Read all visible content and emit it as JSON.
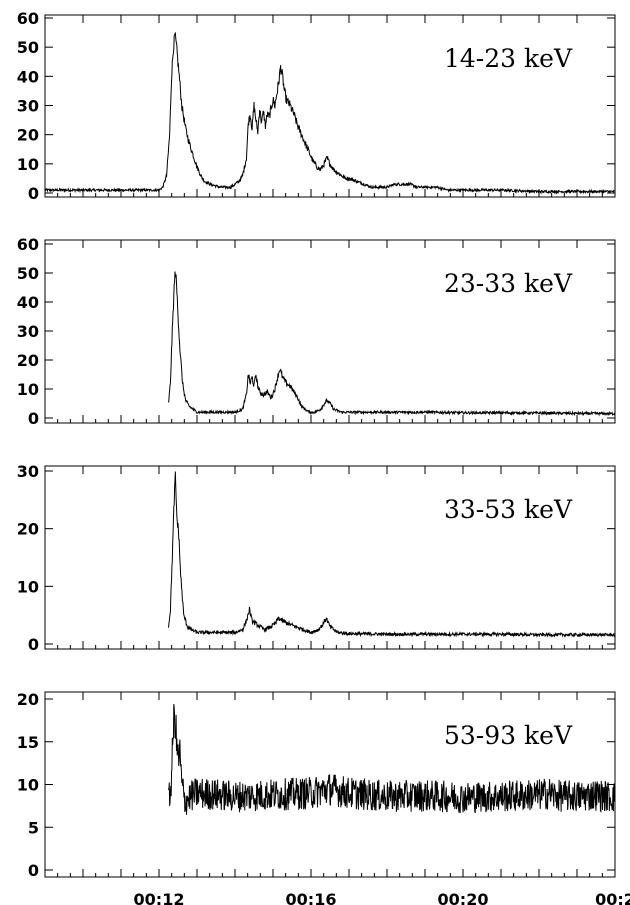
{
  "chart_data": [
    {
      "type": "line",
      "annotation": "14-23 keV",
      "ylim": [
        0,
        60
      ],
      "yticks": [
        0,
        10,
        20,
        30,
        40,
        50,
        60
      ],
      "xlim": [
        9,
        24
      ],
      "xtick_labels": [],
      "grid": false,
      "series": [
        {
          "points": [
            [
              9.0,
              1
            ],
            [
              12.0,
              1
            ],
            [
              12.1,
              2
            ],
            [
              12.2,
              6
            ],
            [
              12.28,
              20
            ],
            [
              12.33,
              40
            ],
            [
              12.38,
              50
            ],
            [
              12.42,
              54
            ],
            [
              12.46,
              50
            ],
            [
              12.52,
              42
            ],
            [
              12.6,
              30
            ],
            [
              12.7,
              22
            ],
            [
              12.8,
              17
            ],
            [
              12.9,
              13
            ],
            [
              13.0,
              9
            ],
            [
              13.1,
              6
            ],
            [
              13.2,
              4
            ],
            [
              13.35,
              3
            ],
            [
              13.6,
              2
            ],
            [
              13.9,
              2
            ],
            [
              14.0,
              3
            ],
            [
              14.1,
              4
            ],
            [
              14.2,
              6
            ],
            [
              14.3,
              12
            ],
            [
              14.35,
              24
            ],
            [
              14.4,
              27
            ],
            [
              14.45,
              22
            ],
            [
              14.5,
              30
            ],
            [
              14.55,
              25
            ],
            [
              14.6,
              21
            ],
            [
              14.65,
              29
            ],
            [
              14.7,
              24
            ],
            [
              14.75,
              28
            ],
            [
              14.8,
              23
            ],
            [
              14.85,
              27
            ],
            [
              14.9,
              26
            ],
            [
              14.95,
              29
            ],
            [
              15.0,
              32
            ],
            [
              15.05,
              30
            ],
            [
              15.1,
              34
            ],
            [
              15.15,
              38
            ],
            [
              15.2,
              43
            ],
            [
              15.25,
              40
            ],
            [
              15.3,
              35
            ],
            [
              15.35,
              32
            ],
            [
              15.45,
              30
            ],
            [
              15.55,
              27
            ],
            [
              15.65,
              23
            ],
            [
              15.75,
              20
            ],
            [
              15.85,
              17
            ],
            [
              15.95,
              14
            ],
            [
              16.05,
              11
            ],
            [
              16.15,
              9
            ],
            [
              16.25,
              8
            ],
            [
              16.35,
              10
            ],
            [
              16.42,
              12
            ],
            [
              16.5,
              10
            ],
            [
              16.6,
              8
            ],
            [
              16.7,
              7
            ],
            [
              16.8,
              6
            ],
            [
              16.9,
              5
            ],
            [
              17.0,
              5
            ],
            [
              17.2,
              4
            ],
            [
              17.4,
              3
            ],
            [
              17.6,
              2
            ],
            [
              17.8,
              2
            ],
            [
              18.0,
              2
            ],
            [
              18.2,
              3
            ],
            [
              18.4,
              3
            ],
            [
              18.6,
              3
            ],
            [
              18.8,
              2
            ],
            [
              19.0,
              2
            ],
            [
              19.3,
              2
            ],
            [
              19.6,
              1
            ],
            [
              20.0,
              1
            ],
            [
              21.0,
              1
            ],
            [
              22.0,
              0.5
            ],
            [
              23.0,
              0.5
            ],
            [
              24.0,
              0.5
            ]
          ]
        }
      ]
    },
    {
      "type": "line",
      "annotation": "23-33 keV",
      "ylim": [
        0,
        60
      ],
      "yticks": [
        0,
        10,
        20,
        30,
        40,
        50,
        60
      ],
      "xlim": [
        9,
        24
      ],
      "xtick_labels": [],
      "grid": false,
      "series": [
        {
          "points": [
            [
              12.25,
              5
            ],
            [
              12.3,
              12
            ],
            [
              12.35,
              30
            ],
            [
              12.4,
              45
            ],
            [
              12.43,
              51
            ],
            [
              12.46,
              46
            ],
            [
              12.5,
              36
            ],
            [
              12.55,
              24
            ],
            [
              12.62,
              12
            ],
            [
              12.7,
              6
            ],
            [
              12.8,
              4
            ],
            [
              12.9,
              3
            ],
            [
              13.0,
              2
            ],
            [
              13.4,
              2
            ],
            [
              13.8,
              2
            ],
            [
              14.0,
              2
            ],
            [
              14.2,
              3
            ],
            [
              14.3,
              8
            ],
            [
              14.35,
              15
            ],
            [
              14.4,
              12
            ],
            [
              14.45,
              14
            ],
            [
              14.5,
              11
            ],
            [
              14.55,
              15
            ],
            [
              14.6,
              11
            ],
            [
              14.65,
              9
            ],
            [
              14.75,
              8
            ],
            [
              14.85,
              9
            ],
            [
              14.95,
              7
            ],
            [
              15.05,
              10
            ],
            [
              15.12,
              14
            ],
            [
              15.18,
              17
            ],
            [
              15.25,
              14
            ],
            [
              15.35,
              12
            ],
            [
              15.45,
              11
            ],
            [
              15.55,
              9
            ],
            [
              15.65,
              7
            ],
            [
              15.75,
              4
            ],
            [
              15.85,
              3
            ],
            [
              15.95,
              2
            ],
            [
              16.1,
              2
            ],
            [
              16.25,
              3
            ],
            [
              16.35,
              5
            ],
            [
              16.42,
              6
            ],
            [
              16.5,
              5
            ],
            [
              16.6,
              3
            ],
            [
              16.8,
              2
            ],
            [
              17.2,
              2
            ],
            [
              18.0,
              2
            ],
            [
              19.0,
              2
            ],
            [
              20.0,
              1.8
            ],
            [
              21.0,
              1.8
            ],
            [
              22.0,
              1.7
            ],
            [
              23.0,
              1.6
            ],
            [
              24.0,
              1.5
            ]
          ]
        }
      ]
    },
    {
      "type": "line",
      "annotation": "33-53 keV",
      "ylim": [
        0,
        30
      ],
      "yticks": [
        0,
        10,
        20,
        30
      ],
      "xlim": [
        9,
        24
      ],
      "xtick_labels": [],
      "grid": false,
      "series": [
        {
          "points": [
            [
              12.25,
              3
            ],
            [
              12.3,
              6
            ],
            [
              12.35,
              15
            ],
            [
              12.4,
              25
            ],
            [
              12.43,
              29
            ],
            [
              12.47,
              22
            ],
            [
              12.52,
              19
            ],
            [
              12.57,
              12
            ],
            [
              12.65,
              5
            ],
            [
              12.75,
              3
            ],
            [
              12.85,
              2.5
            ],
            [
              13.0,
              2
            ],
            [
              13.5,
              2
            ],
            [
              14.0,
              2
            ],
            [
              14.2,
              2.5
            ],
            [
              14.3,
              4
            ],
            [
              14.38,
              6
            ],
            [
              14.45,
              4
            ],
            [
              14.55,
              3.5
            ],
            [
              14.65,
              3
            ],
            [
              14.8,
              2.5
            ],
            [
              14.95,
              3
            ],
            [
              15.05,
              3.5
            ],
            [
              15.15,
              4.5
            ],
            [
              15.25,
              4
            ],
            [
              15.4,
              3.5
            ],
            [
              15.6,
              3
            ],
            [
              15.8,
              2.5
            ],
            [
              16.0,
              2
            ],
            [
              16.2,
              2.5
            ],
            [
              16.32,
              3.5
            ],
            [
              16.4,
              4.5
            ],
            [
              16.5,
              3
            ],
            [
              16.7,
              2
            ],
            [
              17.0,
              1.8
            ],
            [
              18.0,
              1.7
            ],
            [
              19.0,
              1.7
            ],
            [
              20.0,
              1.7
            ],
            [
              21.0,
              1.7
            ],
            [
              22.0,
              1.6
            ],
            [
              22.3,
              1.6
            ],
            [
              23.0,
              1.6
            ],
            [
              24.0,
              1.6
            ]
          ]
        }
      ]
    },
    {
      "type": "line",
      "annotation": "53-93 keV",
      "ylim": [
        0,
        20
      ],
      "yticks": [
        0,
        5,
        10,
        15,
        20
      ],
      "xlim": [
        9,
        24
      ],
      "xtick_labels": [
        "00:12",
        "00:16",
        "00:20",
        "00:2"
      ],
      "xtick_values": [
        12,
        16,
        20,
        24
      ],
      "grid": false,
      "series": [
        {
          "points": [
            [
              12.25,
              8
            ],
            [
              12.3,
              9
            ],
            [
              12.34,
              12
            ],
            [
              12.38,
              17
            ],
            [
              12.42,
              18
            ],
            [
              12.46,
              15
            ],
            [
              12.5,
              13
            ],
            [
              12.55,
              13.5
            ],
            [
              12.6,
              10
            ],
            [
              12.68,
              8
            ],
            [
              12.8,
              8.5
            ],
            [
              13.0,
              9
            ],
            [
              13.5,
              8.8
            ],
            [
              14.0,
              8.6
            ],
            [
              15.0,
              8.8
            ],
            [
              16.0,
              9
            ],
            [
              16.5,
              9.5
            ],
            [
              17.0,
              9
            ],
            [
              18.0,
              8.6
            ],
            [
              19.0,
              8.7
            ],
            [
              20.0,
              8.5
            ],
            [
              21.0,
              8.6
            ],
            [
              22.0,
              8.8
            ],
            [
              22.3,
              9
            ],
            [
              22.4,
              8.7
            ],
            [
              23.0,
              8.6
            ],
            [
              23.5,
              8.8
            ],
            [
              24.0,
              8.5
            ]
          ]
        }
      ]
    }
  ]
}
